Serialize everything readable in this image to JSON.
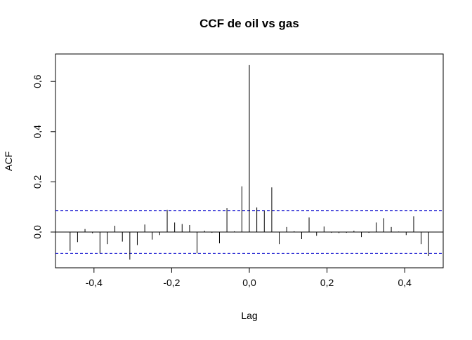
{
  "chart_data": {
    "type": "bar",
    "title": "CCF de oil vs gas",
    "xlabel": "Lag",
    "ylabel": "ACF",
    "xlim": [
      -0.5,
      0.5
    ],
    "ylim": [
      -0.14,
      0.7
    ],
    "x_ticks": [
      {
        "value": -0.4,
        "label": "-0,4"
      },
      {
        "value": -0.2,
        "label": "-0,2"
      },
      {
        "value": 0.0,
        "label": "0,0"
      },
      {
        "value": 0.2,
        "label": "0,2"
      },
      {
        "value": 0.4,
        "label": "0,4"
      }
    ],
    "y_ticks": [
      {
        "value": 0.0,
        "label": "0,0"
      },
      {
        "value": 0.2,
        "label": "0,2"
      },
      {
        "value": 0.4,
        "label": "0,4"
      },
      {
        "value": 0.6,
        "label": "0,6"
      }
    ],
    "confidence_bound": 0.085,
    "colors": {
      "bars": "#000000",
      "confidence_lines": "#0000cc",
      "zero_line": "#000000"
    },
    "lags": [
      -0.4615,
      -0.4423,
      -0.4231,
      -0.4038,
      -0.3846,
      -0.3654,
      -0.3462,
      -0.3269,
      -0.3077,
      -0.2885,
      -0.2692,
      -0.25,
      -0.2308,
      -0.2115,
      -0.1923,
      -0.1731,
      -0.1538,
      -0.1346,
      -0.1154,
      -0.0962,
      -0.0769,
      -0.0577,
      -0.0385,
      -0.0192,
      0.0,
      0.0192,
      0.0385,
      0.0577,
      0.0769,
      0.0962,
      0.1154,
      0.1346,
      0.1538,
      0.1731,
      0.1923,
      0.2115,
      0.2308,
      0.25,
      0.2692,
      0.2885,
      0.3077,
      0.3269,
      0.3462,
      0.3654,
      0.3846,
      0.4038,
      0.4231,
      0.4423,
      0.4615
    ],
    "values": [
      -0.075,
      -0.04,
      0.012,
      -0.005,
      -0.085,
      -0.048,
      0.025,
      -0.038,
      -0.11,
      -0.052,
      0.03,
      -0.03,
      -0.012,
      0.088,
      0.038,
      0.032,
      0.028,
      -0.085,
      0.005,
      -0.003,
      -0.045,
      0.095,
      0.003,
      0.182,
      0.665,
      0.098,
      0.085,
      0.178,
      -0.048,
      0.02,
      0.003,
      -0.028,
      0.058,
      -0.015,
      0.022,
      -0.003,
      -0.004,
      -0.003,
      0.005,
      -0.02,
      -0.003,
      0.038,
      0.055,
      0.02,
      0.002,
      -0.012,
      0.063,
      -0.048,
      -0.095
    ]
  }
}
